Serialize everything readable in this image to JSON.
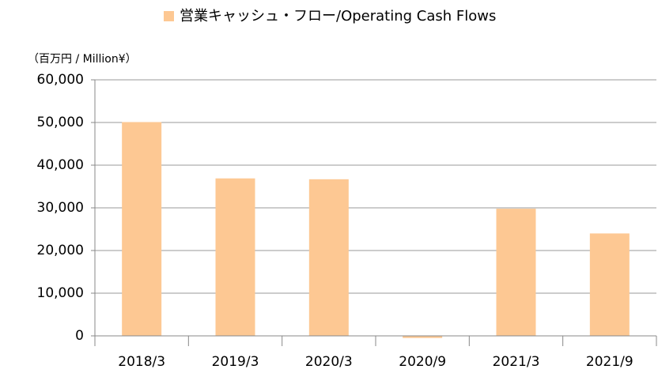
{
  "chart_data": {
    "type": "bar",
    "unit_label": "（百万円 / Million¥）",
    "categories": [
      "2018/3",
      "2019/3",
      "2020/3",
      "2020/9",
      "2021/3",
      "2021/9"
    ],
    "series": [
      {
        "name": "営業キャッシュ・フロー/Operating Cash Flows",
        "color": "#fdc893",
        "values": [
          50100,
          36900,
          36700,
          -500,
          29800,
          24000
        ]
      }
    ],
    "ylim": [
      0,
      60000
    ],
    "yticks": [
      0,
      {
        "value": 10000,
        "label": "10,000"
      },
      {
        "value": 20000,
        "label": "20,000"
      },
      {
        "value": 30000,
        "label": "30,000"
      },
      {
        "value": 40000,
        "label": "40,000"
      },
      {
        "value": 50000,
        "label": "50,000"
      },
      {
        "value": 60000,
        "label": "60,000"
      }
    ],
    "grid": true,
    "legend": "top"
  }
}
